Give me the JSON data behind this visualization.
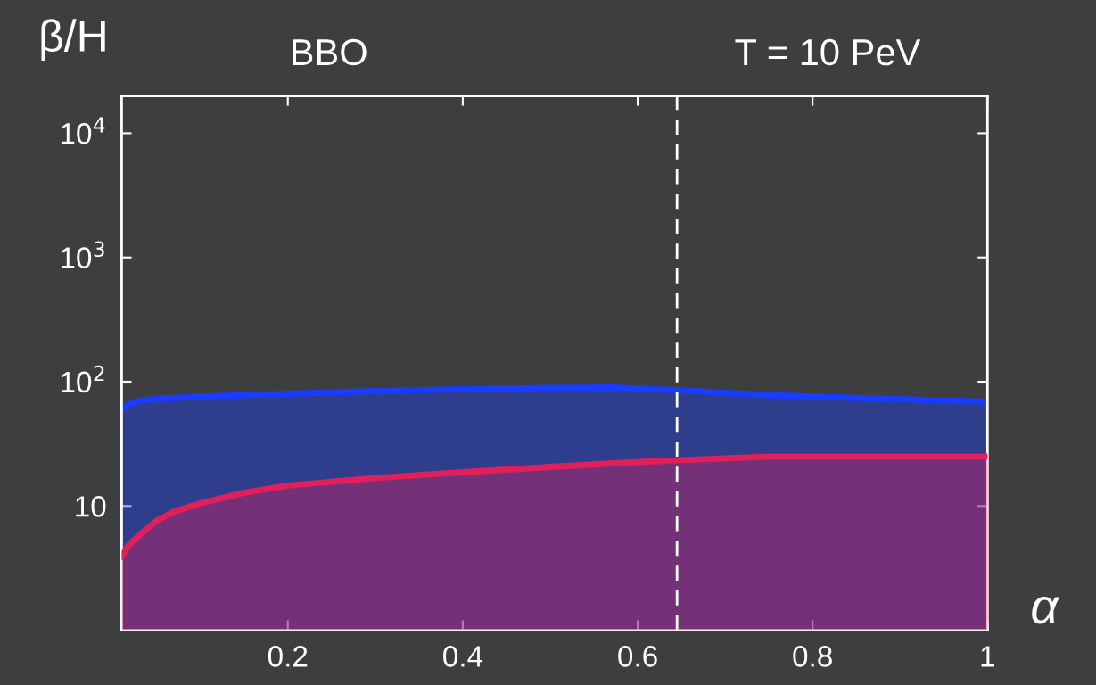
{
  "chart_data": {
    "type": "area",
    "title": "BBO",
    "annotations": [
      "T = 10 PeV"
    ],
    "xlabel": "α",
    "ylabel": "β/H",
    "x": [
      0.01,
      0.015,
      0.02,
      0.03,
      0.05,
      0.07,
      0.1,
      0.15,
      0.2,
      0.3,
      0.4,
      0.5,
      0.57,
      0.65,
      0.75,
      0.85,
      1.0
    ],
    "series": [
      {
        "color": "#1a3cff",
        "values": [
          59,
          64,
          67,
          70,
          73,
          74,
          76,
          78,
          80,
          84,
          87,
          89,
          90,
          85,
          78,
          74,
          69
        ]
      },
      {
        "color": "#e0205a",
        "values": [
          3.9,
          4.5,
          5.0,
          5.8,
          7.6,
          9.0,
          10.5,
          12.8,
          14.6,
          16.8,
          18.7,
          20.6,
          22.0,
          23.4,
          25,
          25,
          25
        ]
      }
    ],
    "xlim": [
      0.01,
      1.0
    ],
    "ylim": [
      1,
      20000
    ],
    "xticks": [
      0.2,
      0.4,
      0.6,
      0.8,
      1
    ],
    "yticks": [
      10,
      {
        "value": 100,
        "label": "10$^{2}$"
      },
      {
        "value": 1000,
        "label": "10$^{3}$"
      },
      {
        "value": 10000,
        "label": "10$^{4}$"
      }
    ],
    "log": "y",
    "grid": false,
    "legend": false,
    "ref_lines": [
      {
        "axis": "x",
        "value": 0.645,
        "color": "#ffffff",
        "line_style": "dashed"
      }
    ]
  }
}
